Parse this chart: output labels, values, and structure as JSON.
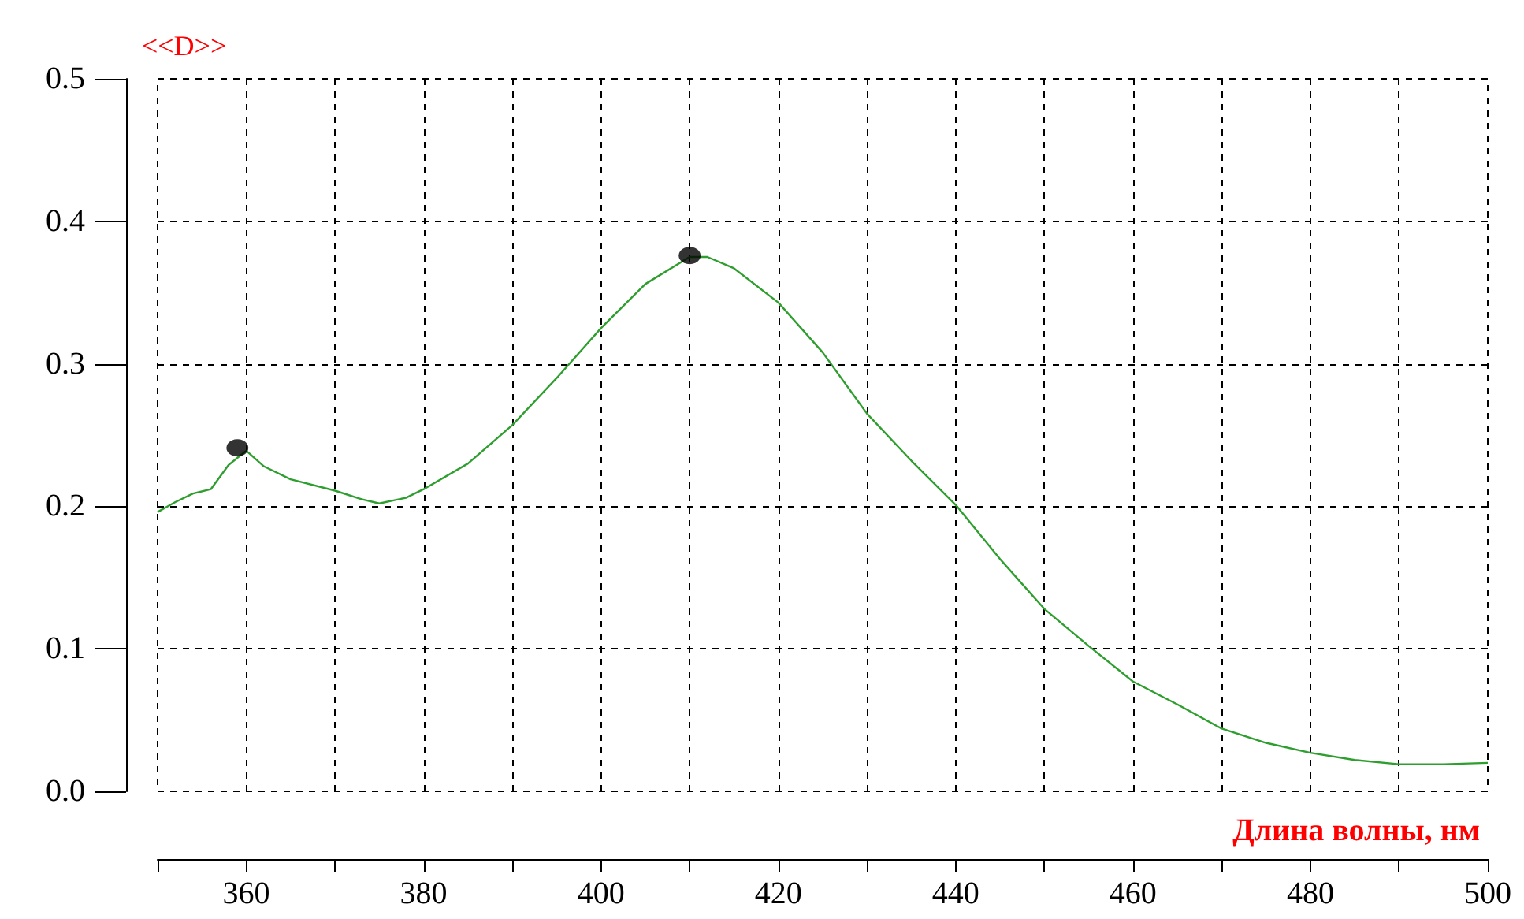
{
  "chart_data": {
    "type": "line",
    "ylabel": "<<D>>",
    "xlabel": "Длина волны, нм",
    "x": [
      350,
      352,
      354,
      356,
      358,
      360,
      362,
      365,
      370,
      373,
      375,
      378,
      380,
      385,
      390,
      395,
      400,
      405,
      410,
      412,
      415,
      420,
      425,
      430,
      435,
      440,
      445,
      450,
      455,
      460,
      465,
      470,
      475,
      480,
      485,
      490,
      495,
      500
    ],
    "series": [
      {
        "color": "#2e9e2e",
        "marker": "none",
        "values": [
          0.196,
          0.203,
          0.209,
          0.212,
          0.229,
          0.239,
          0.228,
          0.219,
          0.211,
          0.205,
          0.202,
          0.206,
          0.212,
          0.23,
          0.257,
          0.29,
          0.325,
          0.356,
          0.375,
          0.375,
          0.367,
          0.343,
          0.308,
          0.265,
          0.232,
          0.201,
          0.163,
          0.128,
          0.102,
          0.077,
          0.061,
          0.044,
          0.034,
          0.027,
          0.022,
          0.019,
          0.019,
          0.02
        ]
      },
      {
        "type": "scatter",
        "color": "#000000",
        "marker": "circle",
        "x": [
          359,
          410
        ],
        "values": [
          0.241,
          0.376
        ]
      }
    ],
    "xlim": [
      350,
      500
    ],
    "xticks": [
      {
        "value": 350,
        "label": null
      },
      360,
      {
        "value": 370,
        "label": null
      },
      380,
      {
        "value": 390,
        "label": null
      },
      400,
      {
        "value": 410,
        "label": null
      },
      420,
      {
        "value": 430,
        "label": null
      },
      440,
      {
        "value": 450,
        "label": null
      },
      460,
      {
        "value": 470,
        "label": null
      },
      480,
      {
        "value": 490,
        "label": null
      },
      500
    ],
    "ylim": [
      0,
      0.5
    ],
    "yticks": [
      {
        "value": 0,
        "label": "0.0"
      },
      0.1,
      0.2,
      0.3,
      0.4,
      0.5
    ],
    "grid": true,
    "line_style": "solid"
  }
}
